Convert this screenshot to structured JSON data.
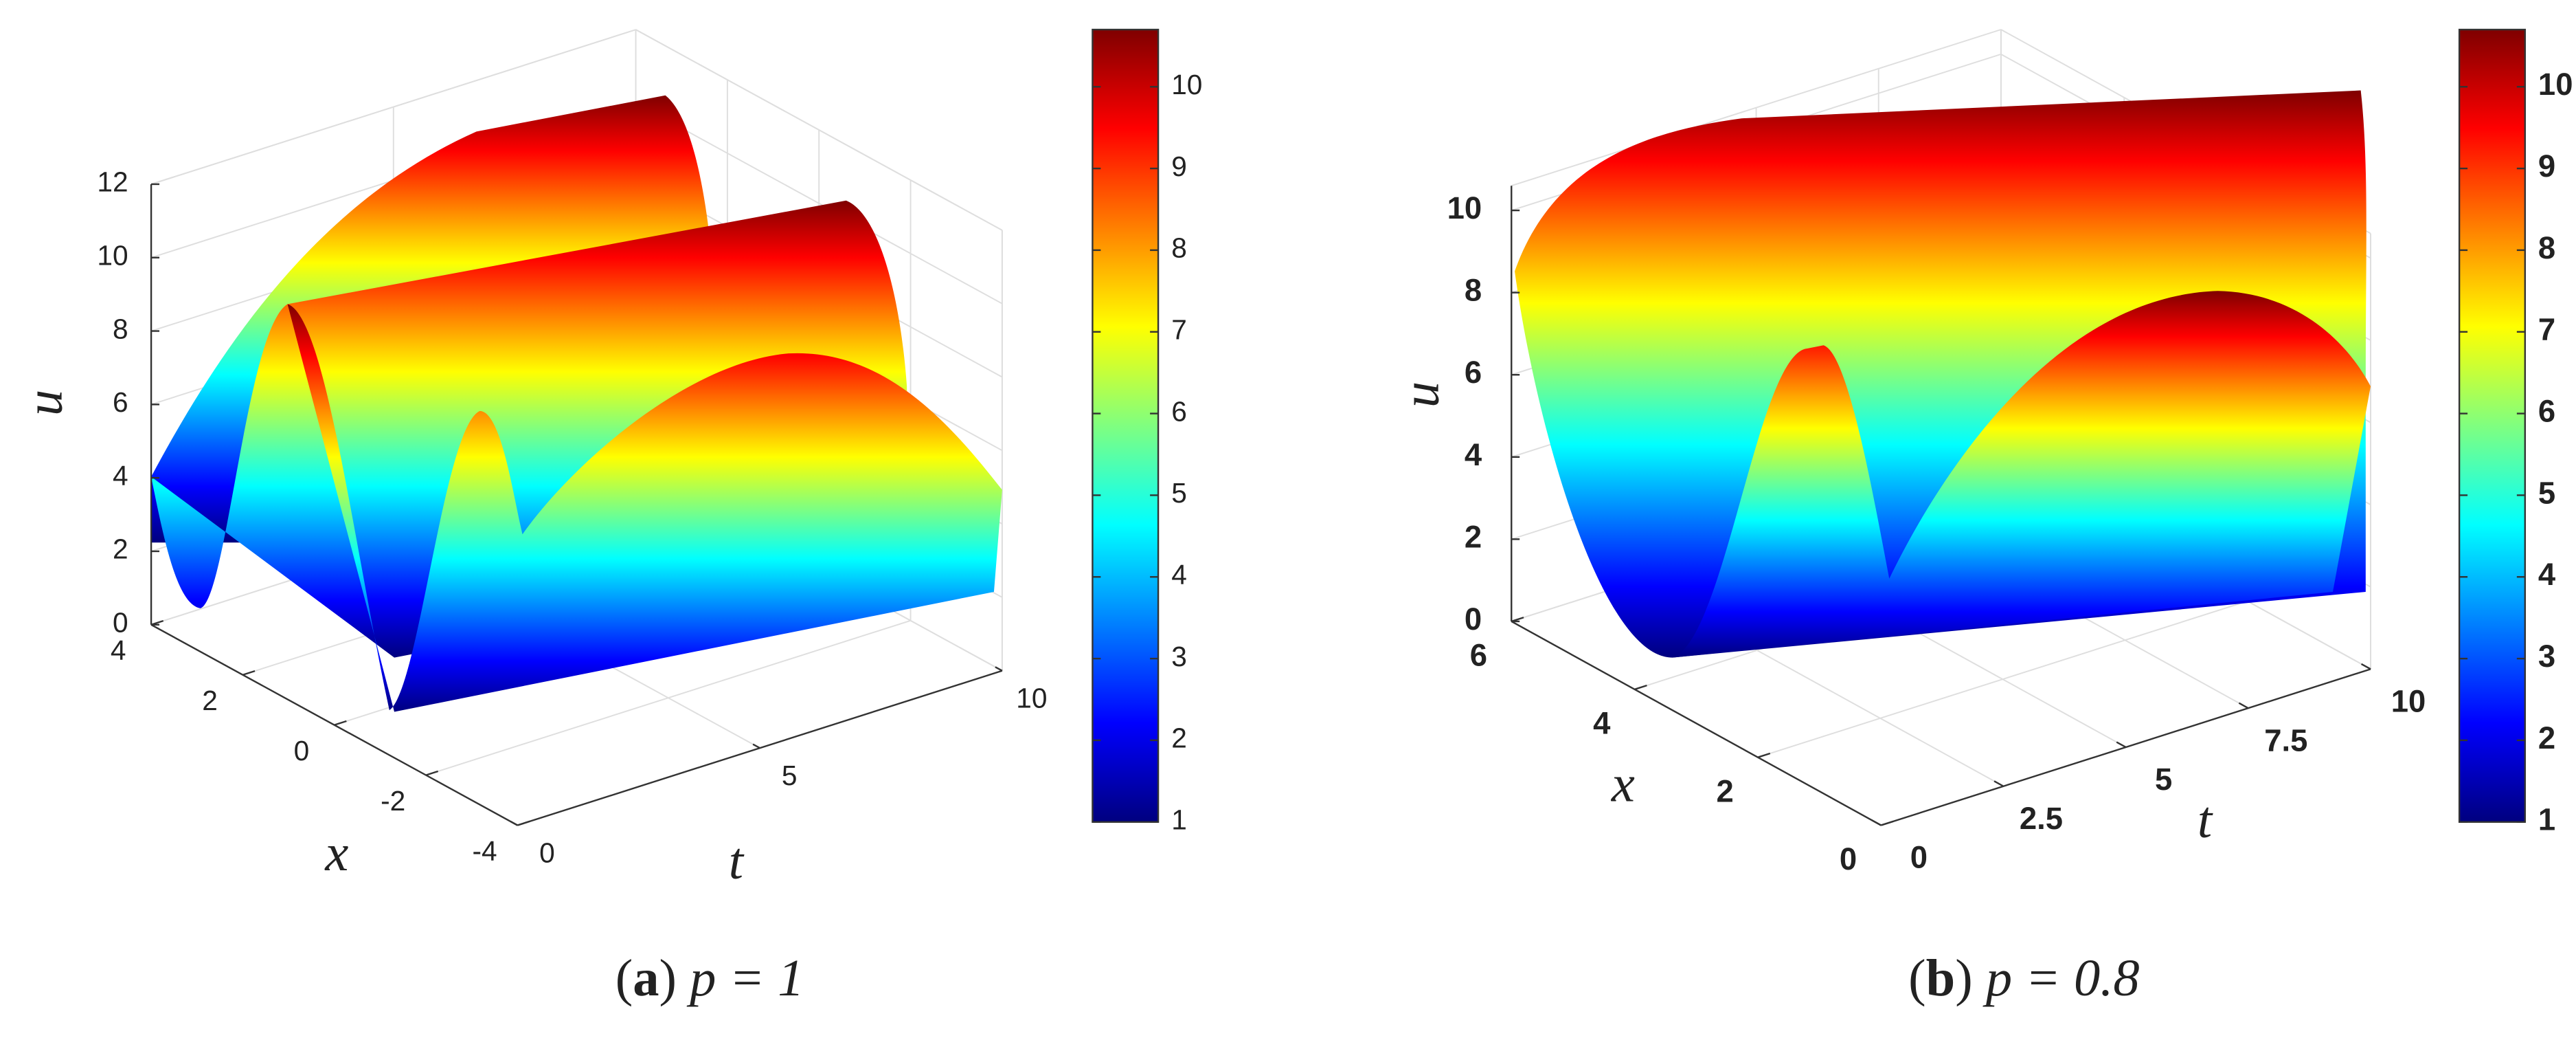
{
  "chart_data": [
    {
      "type": "surface",
      "xlabel": "x",
      "ylabel": "t",
      "zlabel": "u",
      "xlim": [
        -4,
        4
      ],
      "xticks": [
        -4,
        -2,
        0,
        2,
        4
      ],
      "ylim": [
        0,
        10
      ],
      "yticks": [
        0,
        5,
        10
      ],
      "zlim": [
        0,
        12
      ],
      "zticks": [
        0,
        2,
        4,
        6,
        8,
        10,
        12
      ],
      "clim": [
        1,
        10.7
      ],
      "cticks": [
        1,
        2,
        3,
        4,
        5,
        6,
        7,
        8,
        9,
        10
      ],
      "colormap": "jet",
      "grid": true,
      "caption": [
        "(",
        "a",
        ")",
        "p = 1"
      ]
    },
    {
      "type": "surface",
      "xlabel": "x",
      "ylabel": "t",
      "zlabel": "u",
      "xlim": [
        0,
        6
      ],
      "xticks": [
        0,
        2,
        4,
        6
      ],
      "ylim": [
        0,
        10
      ],
      "yticks": [
        0,
        2.5,
        5,
        7.5,
        10
      ],
      "zlim": [
        0,
        10.6
      ],
      "zticks": [
        0,
        2,
        4,
        6,
        8,
        10
      ],
      "clim": [
        1,
        10.7
      ],
      "cticks": [
        1,
        2,
        3,
        4,
        5,
        6,
        7,
        8,
        9,
        10
      ],
      "colormap": "jet",
      "grid": true,
      "caption": [
        "(",
        "b",
        ")",
        "p = 0.8"
      ]
    }
  ]
}
